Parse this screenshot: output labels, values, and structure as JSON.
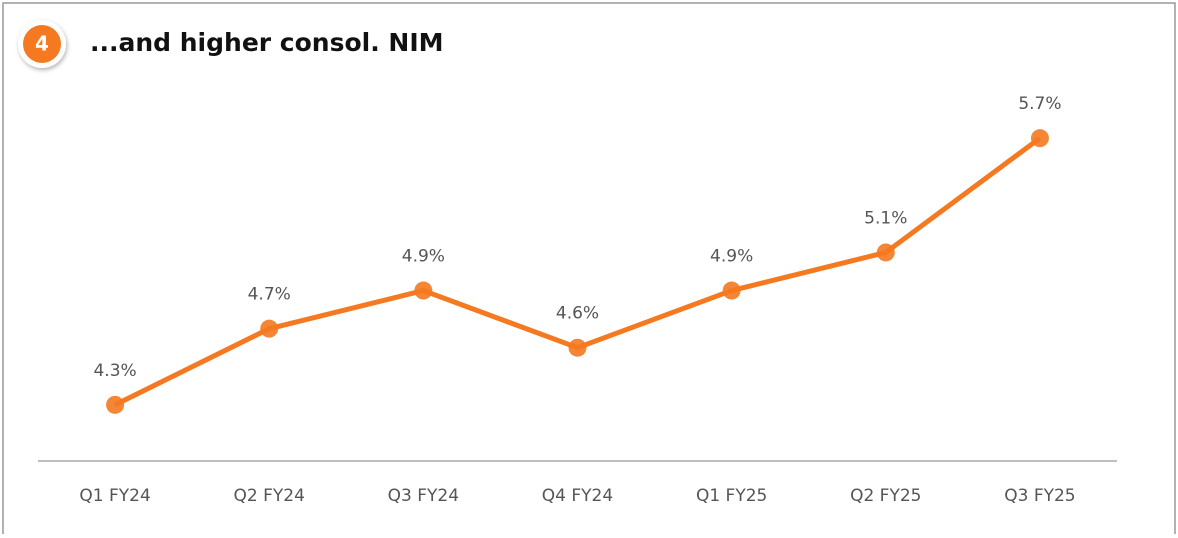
{
  "badge": "4",
  "chart_data": {
    "type": "line",
    "title": "...and higher consol. NIM",
    "categories": [
      "Q1 FY24",
      "Q2 FY24",
      "Q3 FY24",
      "Q4 FY24",
      "Q1 FY25",
      "Q2 FY25",
      "Q3 FY25"
    ],
    "series": [
      {
        "color": "#f47920",
        "values": [
          4.3,
          4.7,
          4.9,
          4.6,
          4.9,
          5.1,
          5.7
        ],
        "value_labels": [
          "4.3%",
          "4.7%",
          "4.9%",
          "4.6%",
          "4.9%",
          "5.1%",
          "5.7%"
        ]
      }
    ],
    "ylim": [
      4,
      6
    ]
  }
}
